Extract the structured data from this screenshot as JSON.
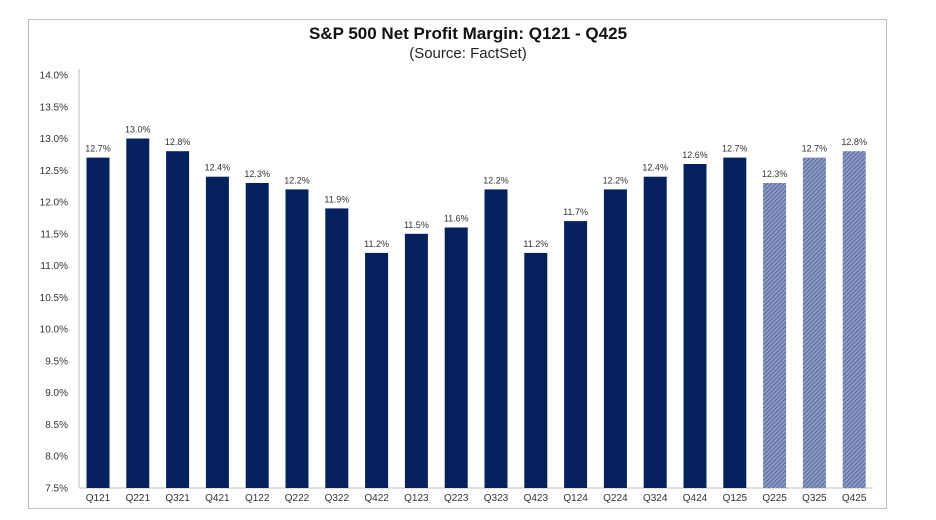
{
  "chart_data": {
    "type": "bar",
    "title": "S&P 500 Net Profit Margin: Q121 - Q425",
    "subtitle": "(Source: FactSet)",
    "xlabel": "",
    "ylabel": "",
    "ylim": [
      7.5,
      14.0
    ],
    "ytick_step": 0.5,
    "ytick_format": "percent_1dp",
    "grid": false,
    "legend": "none",
    "categories": [
      "Q121",
      "Q221",
      "Q321",
      "Q421",
      "Q122",
      "Q222",
      "Q322",
      "Q422",
      "Q123",
      "Q223",
      "Q323",
      "Q423",
      "Q124",
      "Q224",
      "Q324",
      "Q424",
      "Q125",
      "Q225",
      "Q325",
      "Q425"
    ],
    "values": [
      12.7,
      13.0,
      12.8,
      12.4,
      12.3,
      12.2,
      11.9,
      11.2,
      11.5,
      11.6,
      12.2,
      11.2,
      11.7,
      12.2,
      12.4,
      12.6,
      12.7,
      12.3,
      12.7,
      12.8
    ],
    "data_labels": [
      "12.7%",
      "13.0%",
      "12.8%",
      "12.4%",
      "12.3%",
      "12.2%",
      "11.9%",
      "11.2%",
      "11.5%",
      "11.6%",
      "12.2%",
      "11.2%",
      "11.7%",
      "12.2%",
      "12.4%",
      "12.6%",
      "12.7%",
      "12.3%",
      "12.7%",
      "12.8%"
    ],
    "estimate": [
      false,
      false,
      false,
      false,
      false,
      false,
      false,
      false,
      false,
      false,
      false,
      false,
      false,
      false,
      false,
      false,
      false,
      true,
      true,
      true
    ],
    "colors": {
      "actual": "#06215e",
      "estimate_fill": "#8f9cc4",
      "estimate_stripe": "#3b4f8c",
      "axis": "#bfbfbf"
    }
  }
}
